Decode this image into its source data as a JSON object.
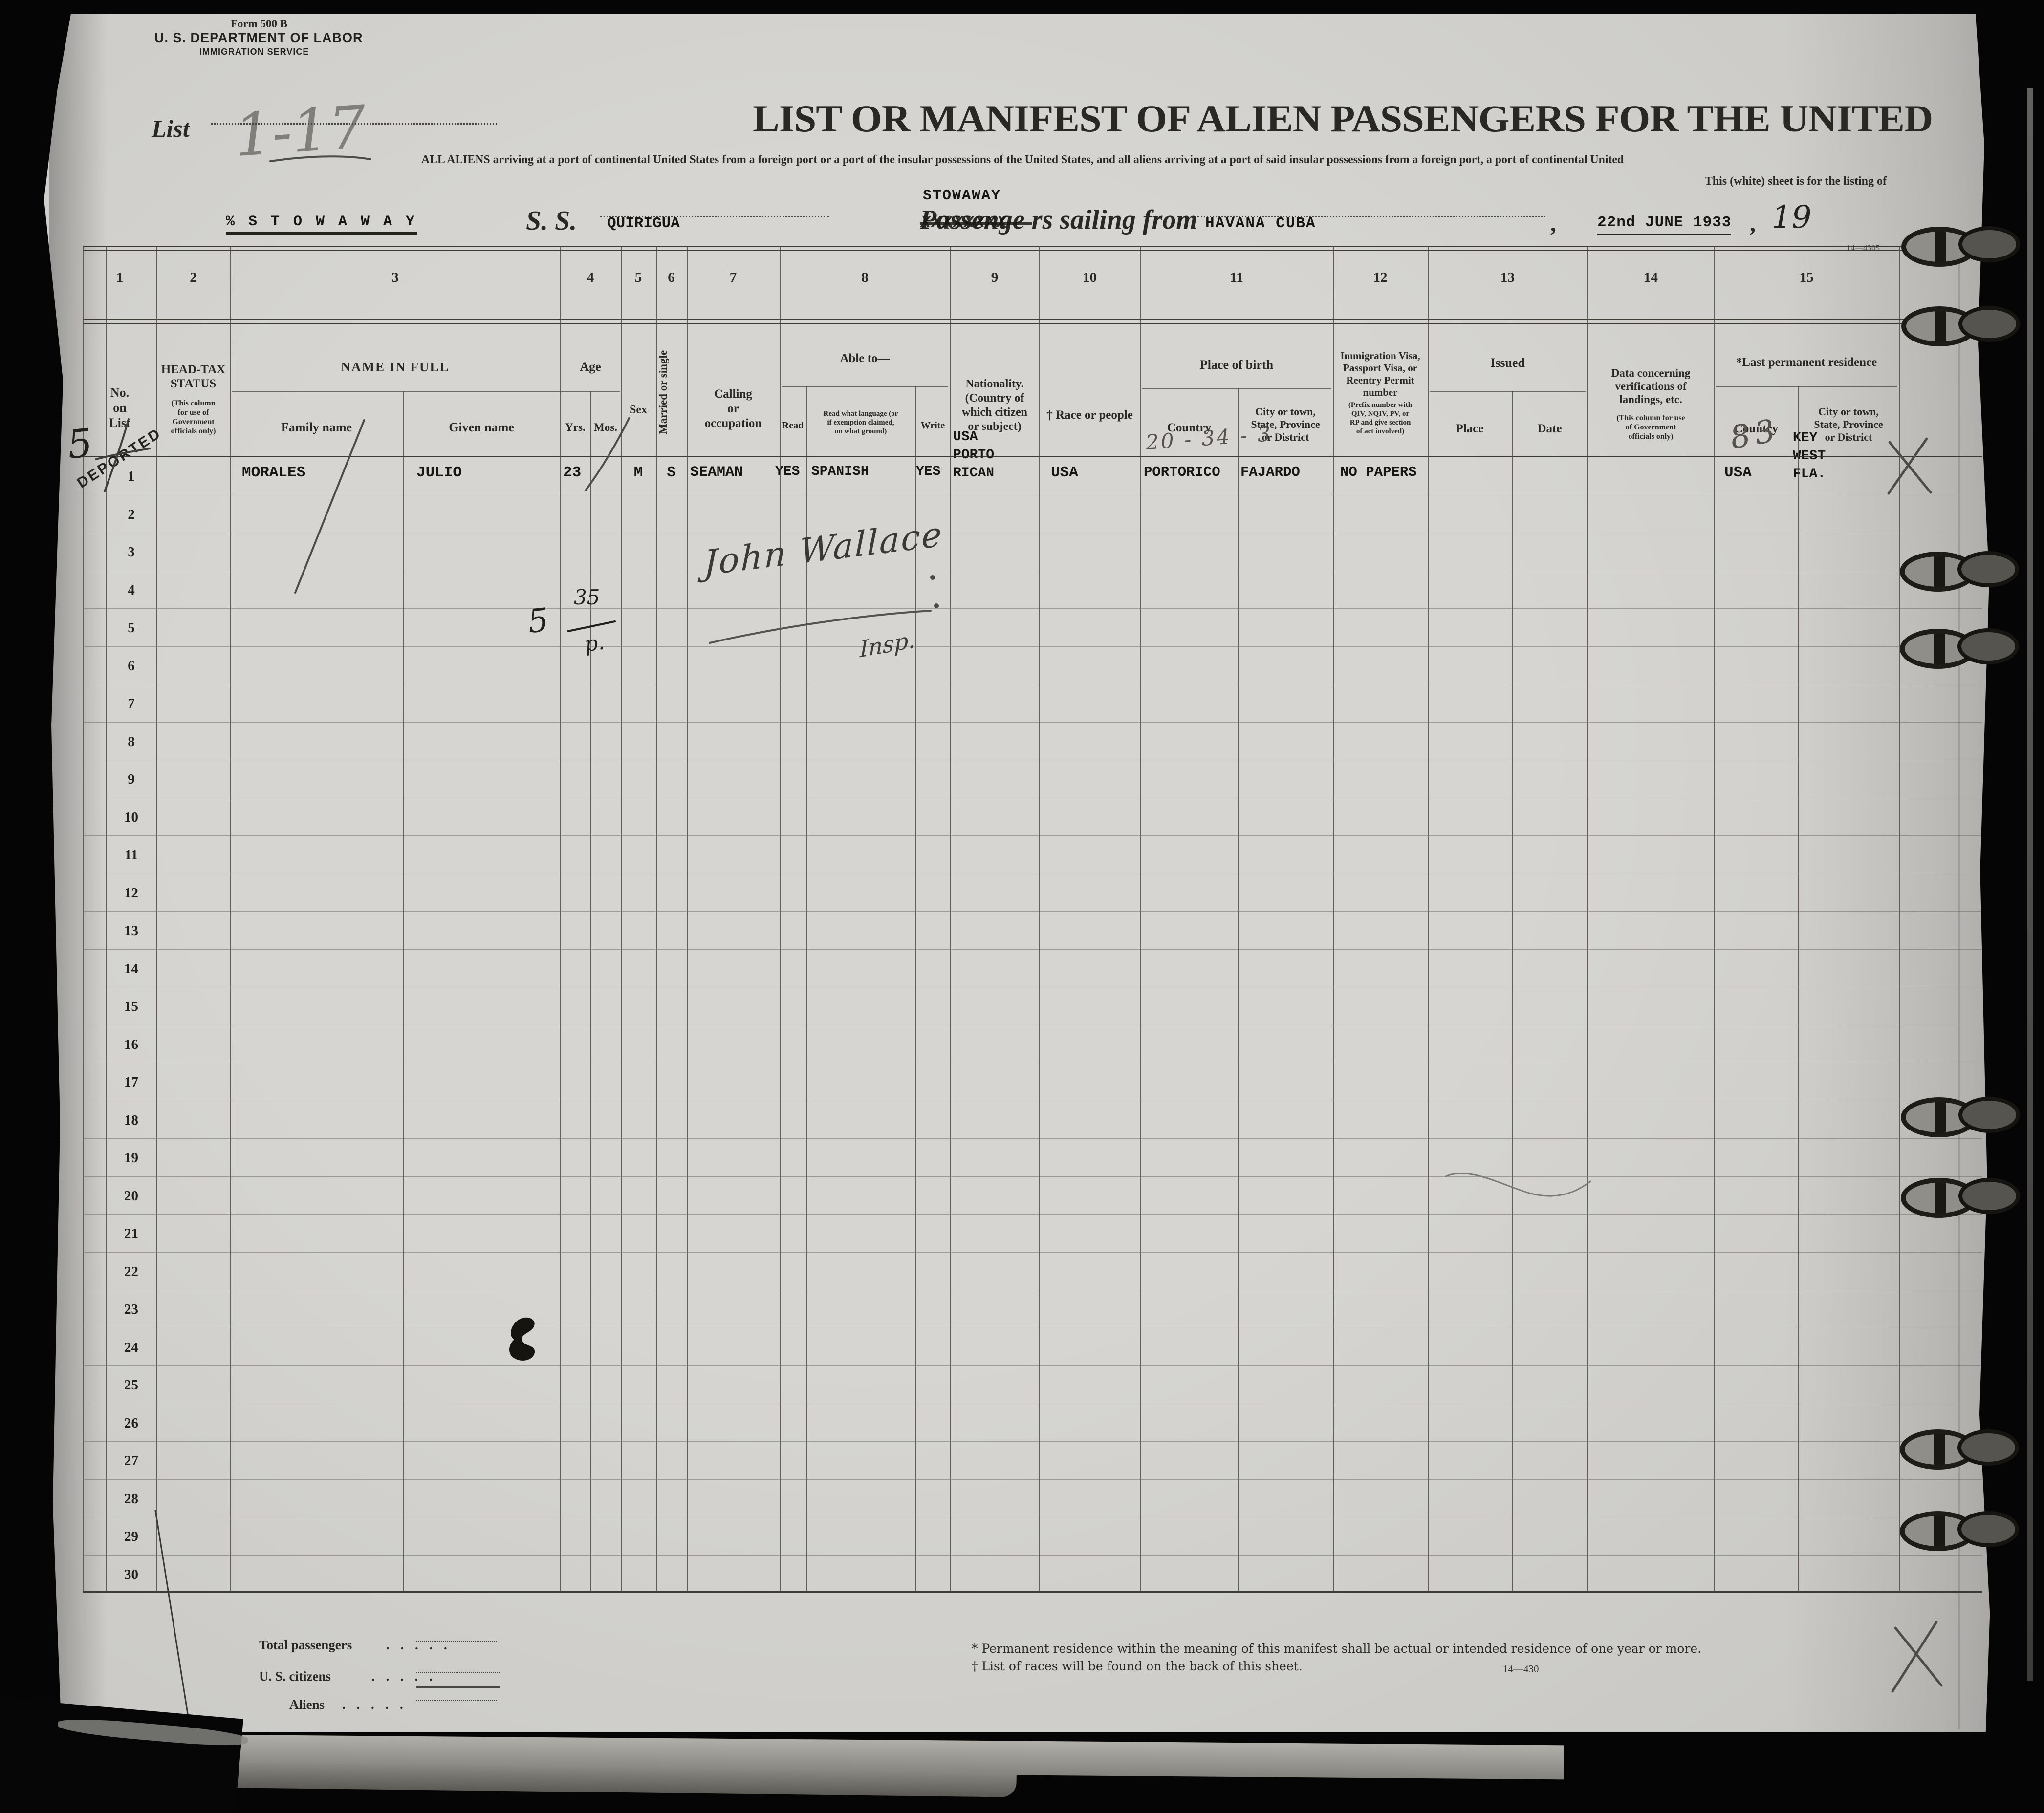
{
  "page": {
    "form_number": "Form 500 B",
    "department": "U. S. DEPARTMENT OF LABOR",
    "service": "IMMIGRATION SERVICE",
    "list_label": "List",
    "title": "LIST OR MANIFEST OF ALIEN PASSENGERS FOR THE UNITED",
    "subtitle_line1": "ALL ALIENS arriving at a port of continental United States from a foreign port or a port of the insular possessions of the United States, and all aliens arriving at a port of said insular possessions from a foreign port, a port of continental United",
    "subtitle_line2": "This (white) sheet is for the listing of",
    "stowaway_overstamp": "STOWAWAY",
    "stowaway_left": "% S T O W A W A Y",
    "ss_label": "S. S.",
    "ship_name": "QUIRIGUA",
    "passenger_struck_word": "Passenge",
    "strike_overlay": "XXXXXXXX",
    "sailing_rest": "rs sailing from",
    "port": "HAVANA CUBA",
    "comma": ",",
    "date": "22nd JUNE 1933",
    "year_print": "19",
    "plate_top": "14—4305",
    "plate_bottom": "14—430"
  },
  "handwritten": {
    "list_number": "1-17",
    "deported_stamp": "DEPORTED",
    "headtax_number": "5",
    "birth_annotation": "20 - 34 - 3",
    "residence_annotation": "83",
    "fraction_five": "5",
    "fraction_top": "35",
    "fraction_bottom": "p.",
    "signature": "John Wallace",
    "signature_title": "Insp."
  },
  "table": {
    "row_numbers": [
      "1",
      "2",
      "3",
      "4",
      "5",
      "6",
      "7",
      "8",
      "9",
      "10",
      "11",
      "12",
      "13",
      "14",
      "15",
      "16",
      "17",
      "18",
      "19",
      "20",
      "21",
      "22",
      "23",
      "24",
      "25",
      "26",
      "27",
      "28",
      "29",
      "30"
    ],
    "columns": [
      {
        "number": "1",
        "label": "No.\non\nList"
      },
      {
        "number": "2",
        "label": "HEAD-TAX\nSTATUS",
        "note": "(This column\nfor use of\nGovernment\nofficials only)"
      },
      {
        "number": "3",
        "label": "NAME IN FULL",
        "sub1": "Family name",
        "sub2": "Given name"
      },
      {
        "number": "4",
        "label": "Age",
        "sub1": "Yrs.",
        "sub2": "Mos."
      },
      {
        "number": "5",
        "label": "Sex"
      },
      {
        "number": "6",
        "label": "Married or single"
      },
      {
        "number": "7",
        "label": "Calling\nor\noccupation"
      },
      {
        "number": "8",
        "label": "Able to—",
        "sub1": "Read",
        "sub2": "Read what language (or\nif exemption claimed,\non what ground)",
        "sub3": "Write"
      },
      {
        "number": "9",
        "label": "Nationality.\n(Country of\nwhich citizen\nor subject)"
      },
      {
        "number": "10",
        "label": "† Race or people"
      },
      {
        "number": "11",
        "label": "Place of birth",
        "sub1": "Country",
        "sub2": "City or town,\nState, Province\nor District"
      },
      {
        "number": "12",
        "label": "Immigration Visa,\nPassport Visa, or\nReentry  Permit\nnumber",
        "note": "(Prefix number with\nQIV, NQIV, PV, or\nRP and give section\nof act involved)"
      },
      {
        "number": "13",
        "label": "Issued",
        "sub1": "Place",
        "sub2": "Date"
      },
      {
        "number": "14",
        "label": "Data  concerning\nverifications of\nlandings, etc.",
        "note": "(This column for use\nof Government\nofficials only)"
      },
      {
        "number": "15",
        "label": "*Last permanent residence",
        "sub1": "Country",
        "sub2": "City or town,\nState, Province\nor District"
      }
    ],
    "row1": {
      "no": "1",
      "family_name": "MORALES",
      "given_name": "JULIO",
      "age_yrs": "23",
      "sex": "M",
      "marital": "S",
      "calling": "SEAMAN",
      "read": "YES",
      "read_language": "SPANISH",
      "write": "YES",
      "nationality": "USA\nPORTO\nRICAN",
      "race": "USA",
      "birth_country": "PORTORICO",
      "birth_city": "FAJARDO",
      "visa": "NO PAPERS",
      "residence_country": "USA",
      "residence_city": "KEY\nWEST\nFLA."
    }
  },
  "footer": {
    "total_label": "Total passengers",
    "citizens_label": "U. S. citizens",
    "aliens_label": "Aliens",
    "leader_dots": ".     .     .     .     .",
    "footnote1": "* Permanent residence within the meaning of this manifest shall be actual or intended residence of one year or more.",
    "footnote2": "† List of races will be found on the back of this sheet.",
    "plate": "14—430"
  }
}
